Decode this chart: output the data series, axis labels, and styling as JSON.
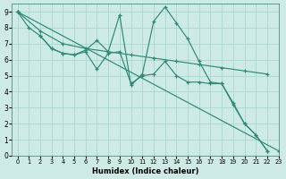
{
  "line_color": "#2e8b6e",
  "bg_color": "#cdeae4",
  "grid_color": "#a8d8d0",
  "xlabel": "Humidex (Indice chaleur)",
  "xlim": [
    -0.5,
    23
  ],
  "ylim": [
    0,
    9.5
  ],
  "xticks": [
    0,
    1,
    2,
    3,
    4,
    5,
    6,
    7,
    8,
    9,
    10,
    11,
    12,
    13,
    14,
    15,
    16,
    17,
    18,
    19,
    20,
    21,
    22,
    23
  ],
  "yticks": [
    0,
    1,
    2,
    3,
    4,
    5,
    6,
    7,
    8,
    9
  ],
  "series": [
    {
      "x": [
        0,
        1,
        2,
        3,
        4,
        5,
        6,
        7,
        8,
        9,
        10,
        11,
        12,
        13,
        14,
        15,
        16,
        17,
        18,
        19,
        20,
        21,
        22
      ],
      "y": [
        9.0,
        8.0,
        7.5,
        6.7,
        6.4,
        6.3,
        6.6,
        7.2,
        6.5,
        8.8,
        4.4,
        5.1,
        8.4,
        9.3,
        8.3,
        7.3,
        5.9,
        4.6,
        4.5,
        3.2,
        2.0,
        1.3,
        0.3
      ]
    },
    {
      "x": [
        0,
        23
      ],
      "y": [
        9.0,
        0.3
      ]
    },
    {
      "x": [
        2,
        3,
        4,
        5,
        6,
        7,
        8,
        9,
        10,
        11,
        12,
        13,
        14,
        15,
        16,
        17,
        18,
        19,
        20,
        21,
        22
      ],
      "y": [
        7.5,
        6.7,
        6.4,
        6.3,
        6.5,
        5.4,
        6.4,
        6.5,
        4.5,
        5.0,
        5.1,
        5.9,
        5.0,
        4.6,
        4.6,
        4.5,
        4.5,
        3.3,
        2.0,
        1.3,
        0.3
      ]
    },
    {
      "x": [
        0,
        2,
        4,
        6,
        8,
        10,
        12,
        14,
        16,
        18,
        20,
        22
      ],
      "y": [
        9.0,
        7.8,
        7.0,
        6.7,
        6.5,
        6.3,
        6.1,
        5.9,
        5.7,
        5.5,
        5.3,
        5.1
      ]
    }
  ]
}
